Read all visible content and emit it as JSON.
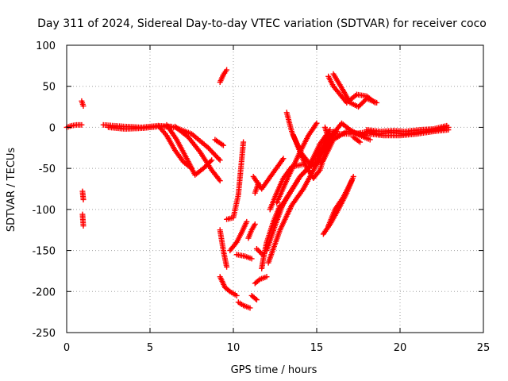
{
  "chart_data": {
    "type": "scatter",
    "title": "Day 311 of 2024, Sidereal Day-to-day VTEC variation (SDTVAR) for receiver coco",
    "xlabel": "GPS time / hours",
    "ylabel": "SDTVAR / TECUs",
    "xlim": [
      0,
      25
    ],
    "ylim": [
      -250,
      100
    ],
    "xticks": [
      0,
      5,
      10,
      15,
      20,
      25
    ],
    "yticks": [
      100,
      50,
      0,
      -50,
      -100,
      -150,
      -200,
      -250
    ],
    "grid": true,
    "marker": "+",
    "color": "#ff0000",
    "tracks": [
      [
        [
          0.0,
          0
        ],
        [
          0.3,
          2
        ],
        [
          0.6,
          3
        ],
        [
          0.9,
          3
        ]
      ],
      [
        [
          0.9,
          32
        ],
        [
          1.0,
          26
        ]
      ],
      [
        [
          0.95,
          -78
        ],
        [
          1.0,
          -88
        ]
      ],
      [
        [
          0.95,
          -106
        ],
        [
          1.0,
          -120
        ]
      ],
      [
        [
          2.2,
          3
        ],
        [
          3.5,
          1
        ],
        [
          4.5,
          0
        ],
        [
          5.5,
          2
        ],
        [
          6.3,
          1
        ]
      ],
      [
        [
          2.5,
          0
        ],
        [
          3.5,
          -2
        ],
        [
          4.6,
          -1
        ],
        [
          5.5,
          1
        ],
        [
          6.5,
          0
        ],
        [
          7.5,
          -8
        ],
        [
          8.5,
          -25
        ],
        [
          9.2,
          -40
        ]
      ],
      [
        [
          5.5,
          2
        ],
        [
          6.0,
          -10
        ],
        [
          6.5,
          -28
        ],
        [
          7.0,
          -42
        ],
        [
          7.5,
          -50
        ]
      ],
      [
        [
          6.0,
          3
        ],
        [
          6.6,
          -15
        ],
        [
          7.2,
          -38
        ],
        [
          7.7,
          -58
        ],
        [
          8.2,
          -50
        ],
        [
          8.7,
          -40
        ]
      ],
      [
        [
          6.5,
          1
        ],
        [
          7.3,
          -12
        ],
        [
          8.0,
          -30
        ],
        [
          8.7,
          -52
        ],
        [
          9.2,
          -65
        ]
      ],
      [
        [
          8.9,
          -15
        ],
        [
          9.4,
          -22
        ]
      ],
      [
        [
          9.2,
          55
        ],
        [
          9.4,
          64
        ],
        [
          9.6,
          70
        ]
      ],
      [
        [
          9.2,
          -125
        ],
        [
          9.4,
          -150
        ],
        [
          9.6,
          -170
        ]
      ],
      [
        [
          9.2,
          -182
        ],
        [
          9.5,
          -195
        ],
        [
          9.8,
          -200
        ],
        [
          10.2,
          -205
        ]
      ],
      [
        [
          9.6,
          -112
        ],
        [
          10.0,
          -110
        ],
        [
          10.3,
          -82
        ],
        [
          10.6,
          -18
        ]
      ],
      [
        [
          9.8,
          -150
        ],
        [
          10.2,
          -140
        ],
        [
          10.5,
          -128
        ],
        [
          10.8,
          -115
        ]
      ],
      [
        [
          10.3,
          -213
        ],
        [
          10.6,
          -217
        ],
        [
          11.0,
          -220
        ]
      ],
      [
        [
          10.2,
          -155
        ],
        [
          10.7,
          -157
        ],
        [
          11.1,
          -160
        ]
      ],
      [
        [
          10.9,
          -135
        ],
        [
          11.1,
          -125
        ],
        [
          11.3,
          -118
        ]
      ],
      [
        [
          11.1,
          -205
        ],
        [
          11.4,
          -210
        ]
      ],
      [
        [
          11.3,
          -80
        ],
        [
          11.5,
          -68
        ]
      ],
      [
        [
          11.2,
          -60
        ],
        [
          11.7,
          -75
        ],
        [
          12.4,
          -55
        ],
        [
          13.0,
          -38
        ]
      ],
      [
        [
          11.4,
          -148
        ],
        [
          11.8,
          -156
        ]
      ],
      [
        [
          11.7,
          -172
        ],
        [
          11.8,
          -160
        ],
        [
          12.0,
          -140
        ],
        [
          12.4,
          -115
        ],
        [
          12.8,
          -95
        ]
      ],
      [
        [
          11.3,
          -190
        ],
        [
          11.6,
          -185
        ],
        [
          12.0,
          -182
        ]
      ],
      [
        [
          12.2,
          -100
        ],
        [
          12.6,
          -80
        ],
        [
          13.0,
          -62
        ],
        [
          13.5,
          -48
        ],
        [
          14.2,
          -45
        ]
      ],
      [
        [
          12.1,
          -165
        ],
        [
          12.8,
          -125
        ],
        [
          13.5,
          -95
        ],
        [
          14.2,
          -75
        ],
        [
          15.0,
          -45
        ],
        [
          15.8,
          -12
        ],
        [
          16.2,
          -5
        ]
      ],
      [
        [
          12.8,
          -100
        ],
        [
          13.4,
          -80
        ],
        [
          14.0,
          -60
        ],
        [
          14.6,
          -48
        ],
        [
          15.4,
          -40
        ],
        [
          16.0,
          -15
        ],
        [
          16.8,
          -5
        ],
        [
          18.0,
          -10
        ]
      ],
      [
        [
          12.0,
          -150
        ],
        [
          12.5,
          -120
        ],
        [
          13.0,
          -92
        ],
        [
          14.0,
          -60
        ],
        [
          15.0,
          -38
        ],
        [
          15.8,
          -8
        ],
        [
          17.0,
          -8
        ],
        [
          18.5,
          -5
        ]
      ],
      [
        [
          12.6,
          -92
        ],
        [
          13.3,
          -60
        ],
        [
          14.0,
          -30
        ],
        [
          14.5,
          -10
        ],
        [
          15.0,
          5
        ]
      ],
      [
        [
          13.2,
          18
        ],
        [
          13.5,
          -5
        ],
        [
          13.9,
          -25
        ],
        [
          14.3,
          -45
        ],
        [
          14.8,
          -62
        ],
        [
          15.2,
          -52
        ],
        [
          15.6,
          -25
        ],
        [
          16.0,
          -5
        ]
      ],
      [
        [
          13.6,
          -10
        ],
        [
          14.1,
          -32
        ],
        [
          14.6,
          -45
        ],
        [
          15.2,
          -20
        ],
        [
          15.8,
          -3
        ]
      ],
      [
        [
          15.5,
          0
        ],
        [
          15.8,
          -20
        ],
        [
          16.1,
          -5
        ],
        [
          16.5,
          5
        ],
        [
          17.0,
          -3
        ],
        [
          17.6,
          -10
        ],
        [
          18.2,
          -15
        ]
      ],
      [
        [
          15.7,
          62
        ],
        [
          16.0,
          50
        ],
        [
          16.4,
          40
        ],
        [
          16.8,
          30
        ],
        [
          17.4,
          40
        ],
        [
          18.0,
          38
        ],
        [
          18.5,
          30
        ]
      ],
      [
        [
          16.0,
          65
        ],
        [
          16.5,
          48
        ],
        [
          17.0,
          30
        ],
        [
          17.5,
          25
        ],
        [
          18.0,
          35
        ],
        [
          18.6,
          30
        ]
      ],
      [
        [
          15.4,
          -130
        ],
        [
          15.8,
          -118
        ],
        [
          16.3,
          -100
        ],
        [
          16.8,
          -80
        ],
        [
          17.2,
          -60
        ]
      ],
      [
        [
          15.7,
          -120
        ],
        [
          16.1,
          -100
        ],
        [
          16.6,
          -85
        ],
        [
          17.1,
          -65
        ]
      ],
      [
        [
          17.2,
          -12
        ],
        [
          17.6,
          -18
        ]
      ],
      [
        [
          18.0,
          -5
        ],
        [
          18.7,
          -8
        ],
        [
          19.5,
          -6
        ],
        [
          20.2,
          -8
        ],
        [
          21.0,
          -6
        ],
        [
          21.8,
          -4
        ],
        [
          22.5,
          -2
        ],
        [
          22.9,
          0
        ]
      ],
      [
        [
          18.0,
          -3
        ],
        [
          18.8,
          -5
        ],
        [
          19.6,
          -4
        ],
        [
          20.3,
          -5
        ],
        [
          21.2,
          -3
        ],
        [
          22.0,
          -2
        ],
        [
          22.8,
          2
        ]
      ],
      [
        [
          18.2,
          -8
        ],
        [
          19.0,
          -10
        ],
        [
          20.0,
          -10
        ],
        [
          21.0,
          -8
        ],
        [
          22.0,
          -5
        ],
        [
          22.9,
          -3
        ]
      ]
    ]
  }
}
